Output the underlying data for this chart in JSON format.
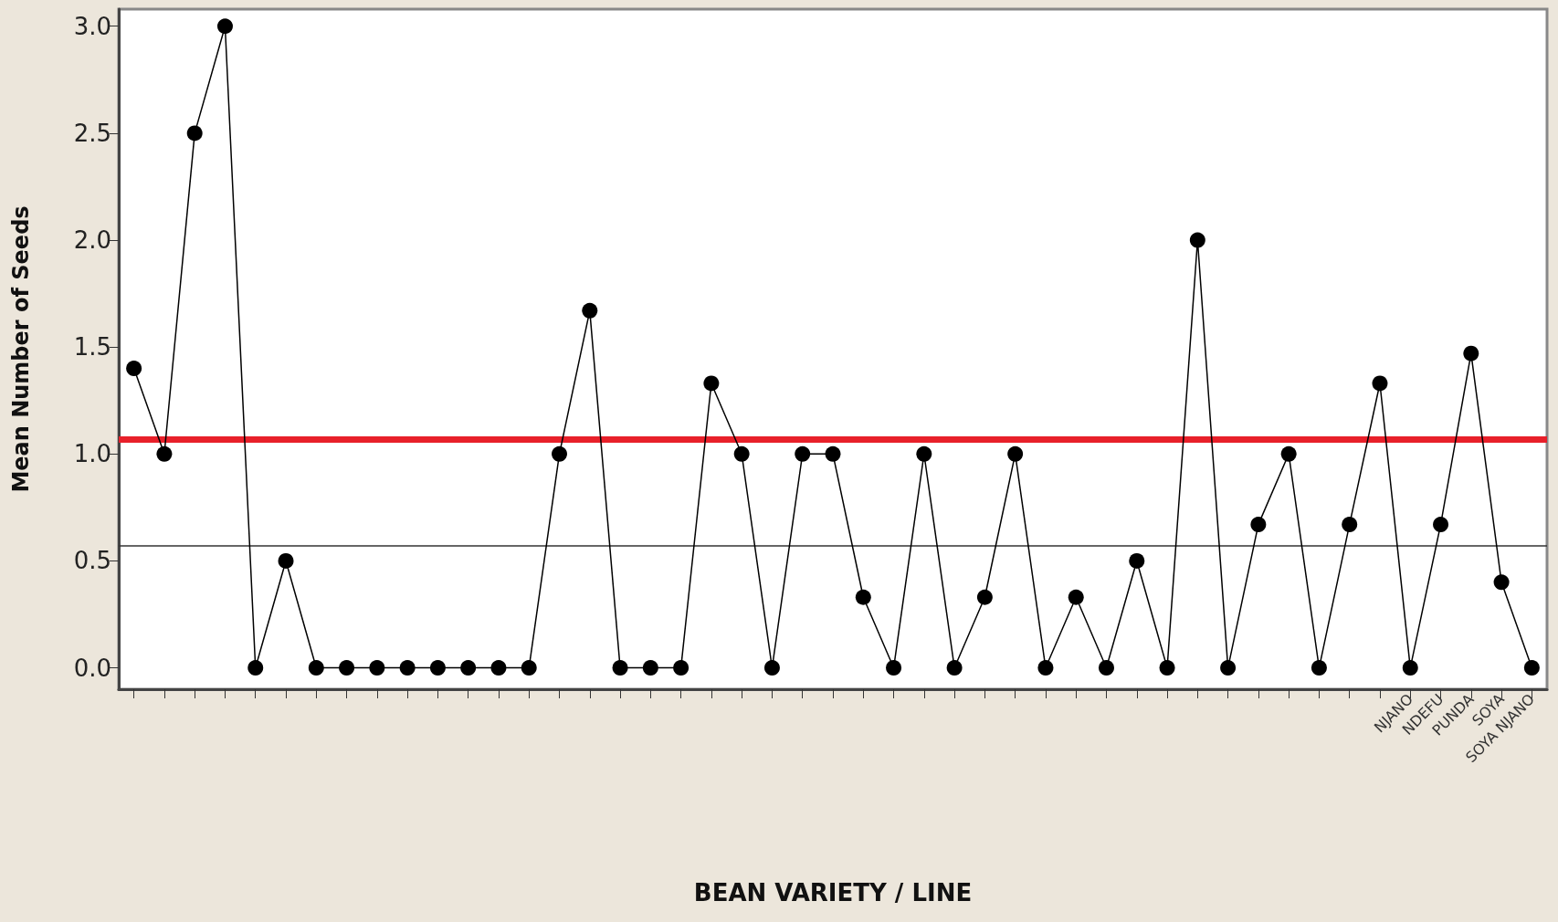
{
  "chart_data": {
    "type": "line",
    "xlabel": "BEAN VARIETY / LINE",
    "ylabel": "Mean Number of Seeds",
    "categories": [
      null,
      null,
      null,
      null,
      null,
      null,
      null,
      null,
      null,
      null,
      null,
      null,
      null,
      null,
      null,
      null,
      null,
      null,
      null,
      null,
      null,
      null,
      null,
      null,
      null,
      null,
      null,
      null,
      null,
      null,
      null,
      null,
      null,
      null,
      null,
      null,
      null,
      null,
      null,
      null,
      null,
      null,
      "NJANO",
      "NDEFU",
      "PUNDA",
      "SOYA",
      "SOYA NJANO"
    ],
    "values": [
      1.4,
      1.0,
      2.5,
      3.0,
      0,
      0.5,
      0,
      0,
      0,
      0,
      0,
      0,
      0,
      0,
      1.0,
      1.67,
      0,
      0,
      0,
      1.33,
      1.0,
      0,
      1.0,
      1.0,
      0.33,
      0,
      1.0,
      0,
      0.33,
      1.0,
      0,
      0.33,
      0,
      0.5,
      0,
      2.0,
      0,
      0.67,
      1.0,
      0,
      0.67,
      1.33,
      0,
      0.67,
      1.47,
      0.4,
      0
    ],
    "color": "#000000",
    "marker": "circle",
    "line_style": "solid",
    "ylim": [
      -0.1,
      3.08
    ],
    "yticks": [
      {
        "value": 0,
        "label": "0.0"
      },
      {
        "value": 0.5,
        "label": "0.5"
      },
      {
        "value": 1,
        "label": "1.0"
      },
      {
        "value": 1.5,
        "label": "1.5"
      },
      {
        "value": 2,
        "label": "2.0"
      },
      {
        "value": 2.5,
        "label": "2.5"
      },
      {
        "value": 3,
        "label": "3.0"
      }
    ],
    "ref_lines": [
      {
        "axis": "y",
        "value": 0.57,
        "color": "#333333",
        "line_style": "solid"
      },
      {
        "axis": "y",
        "value": 1.07,
        "color": "#e8202a",
        "line_style": "solid"
      }
    ]
  }
}
